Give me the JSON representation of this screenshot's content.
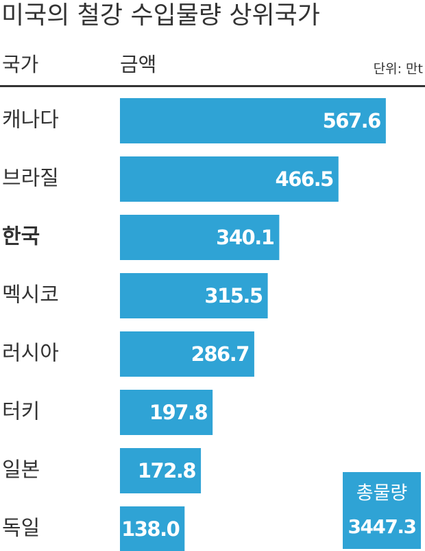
{
  "chart_data": {
    "type": "bar",
    "orientation": "horizontal",
    "title": "미국의 철강 수입물량 상위국가",
    "category_header": "국가",
    "value_header": "금액",
    "unit": "단위: 만t",
    "categories": [
      "캐나다",
      "브라질",
      "한국",
      "멕시코",
      "러시아",
      "터키",
      "일본",
      "독일"
    ],
    "values": [
      567.6,
      466.5,
      340.1,
      315.5,
      286.7,
      197.8,
      172.8,
      138.0
    ],
    "value_labels": [
      "567.6",
      "466.5",
      "340.1",
      "315.5",
      "286.7",
      "197.8",
      "172.8",
      "138.0"
    ],
    "highlight": "한국",
    "color": "#2fa3d5",
    "xlim": [
      0,
      600
    ],
    "total": {
      "label": "총물량",
      "value": 3447.3
    }
  }
}
